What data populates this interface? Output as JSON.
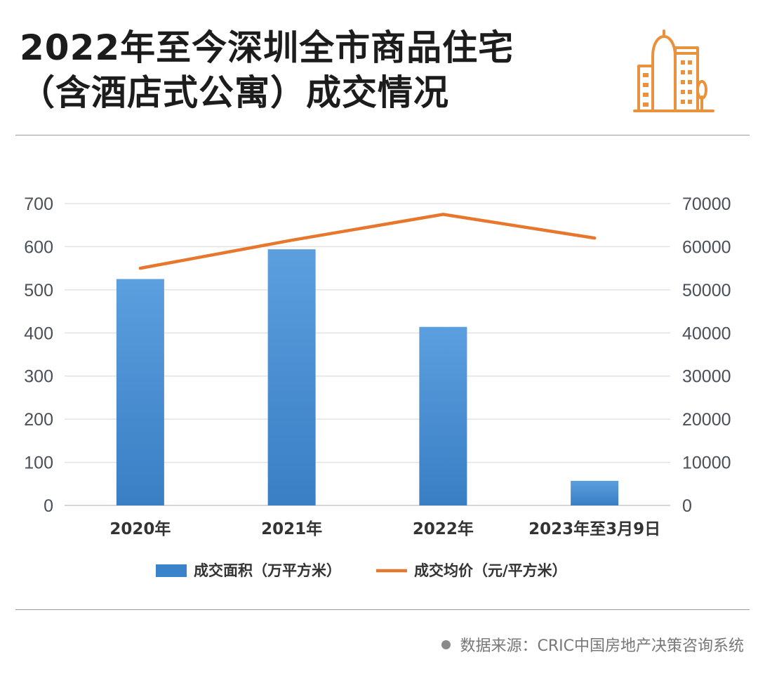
{
  "header": {
    "title_line1": "2022年至今深圳全市商品住宅",
    "title_line2": "（含酒店式公寓）成交情况",
    "icon": "building-icon"
  },
  "chart_data": {
    "type": "bar",
    "categories": [
      "2020年",
      "2021年",
      "2022年",
      "2023年至3月9日"
    ],
    "series": [
      {
        "name": "成交面积（万平方米）",
        "type": "bar",
        "axis": "left",
        "color": "#3a82c9",
        "values": [
          525,
          594,
          414,
          57
        ]
      },
      {
        "name": "成交均价（元/平方米）",
        "type": "line",
        "axis": "right",
        "color": "#e8772e",
        "values": [
          55000,
          61500,
          67500,
          62000
        ]
      }
    ],
    "ylim": [
      0,
      700
    ],
    "y2lim": [
      0,
      70000
    ],
    "yticks": [
      "0",
      "100",
      "200",
      "300",
      "400",
      "500",
      "600",
      "700"
    ],
    "y2ticks": [
      "0",
      "10000",
      "20000",
      "30000",
      "40000",
      "50000",
      "60000",
      "70000"
    ],
    "grid": true,
    "legend": "bottom"
  },
  "footer": {
    "source": "数据来源：CRIC中国房地产决策咨询系统"
  }
}
